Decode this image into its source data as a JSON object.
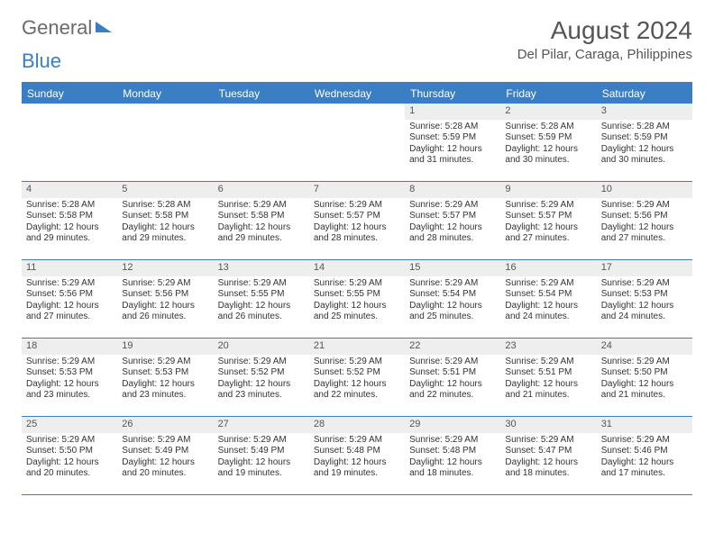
{
  "logo": {
    "text1": "General",
    "text2": "Blue"
  },
  "title": "August 2024",
  "location": "Del Pilar, Caraga, Philippines",
  "colors": {
    "brand_blue": "#3a7fc4",
    "header_text": "#555555",
    "day_number_bg": "#eeeeee",
    "body_text": "#333333",
    "background": "#ffffff"
  },
  "dow": [
    "Sunday",
    "Monday",
    "Tuesday",
    "Wednesday",
    "Thursday",
    "Friday",
    "Saturday"
  ],
  "weeks": [
    [
      {
        "n": "",
        "sr": "",
        "ss": "",
        "dl": ""
      },
      {
        "n": "",
        "sr": "",
        "ss": "",
        "dl": ""
      },
      {
        "n": "",
        "sr": "",
        "ss": "",
        "dl": ""
      },
      {
        "n": "",
        "sr": "",
        "ss": "",
        "dl": ""
      },
      {
        "n": "1",
        "sr": "Sunrise: 5:28 AM",
        "ss": "Sunset: 5:59 PM",
        "dl": "Daylight: 12 hours and 31 minutes."
      },
      {
        "n": "2",
        "sr": "Sunrise: 5:28 AM",
        "ss": "Sunset: 5:59 PM",
        "dl": "Daylight: 12 hours and 30 minutes."
      },
      {
        "n": "3",
        "sr": "Sunrise: 5:28 AM",
        "ss": "Sunset: 5:59 PM",
        "dl": "Daylight: 12 hours and 30 minutes."
      }
    ],
    [
      {
        "n": "4",
        "sr": "Sunrise: 5:28 AM",
        "ss": "Sunset: 5:58 PM",
        "dl": "Daylight: 12 hours and 29 minutes."
      },
      {
        "n": "5",
        "sr": "Sunrise: 5:28 AM",
        "ss": "Sunset: 5:58 PM",
        "dl": "Daylight: 12 hours and 29 minutes."
      },
      {
        "n": "6",
        "sr": "Sunrise: 5:29 AM",
        "ss": "Sunset: 5:58 PM",
        "dl": "Daylight: 12 hours and 29 minutes."
      },
      {
        "n": "7",
        "sr": "Sunrise: 5:29 AM",
        "ss": "Sunset: 5:57 PM",
        "dl": "Daylight: 12 hours and 28 minutes."
      },
      {
        "n": "8",
        "sr": "Sunrise: 5:29 AM",
        "ss": "Sunset: 5:57 PM",
        "dl": "Daylight: 12 hours and 28 minutes."
      },
      {
        "n": "9",
        "sr": "Sunrise: 5:29 AM",
        "ss": "Sunset: 5:57 PM",
        "dl": "Daylight: 12 hours and 27 minutes."
      },
      {
        "n": "10",
        "sr": "Sunrise: 5:29 AM",
        "ss": "Sunset: 5:56 PM",
        "dl": "Daylight: 12 hours and 27 minutes."
      }
    ],
    [
      {
        "n": "11",
        "sr": "Sunrise: 5:29 AM",
        "ss": "Sunset: 5:56 PM",
        "dl": "Daylight: 12 hours and 27 minutes."
      },
      {
        "n": "12",
        "sr": "Sunrise: 5:29 AM",
        "ss": "Sunset: 5:56 PM",
        "dl": "Daylight: 12 hours and 26 minutes."
      },
      {
        "n": "13",
        "sr": "Sunrise: 5:29 AM",
        "ss": "Sunset: 5:55 PM",
        "dl": "Daylight: 12 hours and 26 minutes."
      },
      {
        "n": "14",
        "sr": "Sunrise: 5:29 AM",
        "ss": "Sunset: 5:55 PM",
        "dl": "Daylight: 12 hours and 25 minutes."
      },
      {
        "n": "15",
        "sr": "Sunrise: 5:29 AM",
        "ss": "Sunset: 5:54 PM",
        "dl": "Daylight: 12 hours and 25 minutes."
      },
      {
        "n": "16",
        "sr": "Sunrise: 5:29 AM",
        "ss": "Sunset: 5:54 PM",
        "dl": "Daylight: 12 hours and 24 minutes."
      },
      {
        "n": "17",
        "sr": "Sunrise: 5:29 AM",
        "ss": "Sunset: 5:53 PM",
        "dl": "Daylight: 12 hours and 24 minutes."
      }
    ],
    [
      {
        "n": "18",
        "sr": "Sunrise: 5:29 AM",
        "ss": "Sunset: 5:53 PM",
        "dl": "Daylight: 12 hours and 23 minutes."
      },
      {
        "n": "19",
        "sr": "Sunrise: 5:29 AM",
        "ss": "Sunset: 5:53 PM",
        "dl": "Daylight: 12 hours and 23 minutes."
      },
      {
        "n": "20",
        "sr": "Sunrise: 5:29 AM",
        "ss": "Sunset: 5:52 PM",
        "dl": "Daylight: 12 hours and 23 minutes."
      },
      {
        "n": "21",
        "sr": "Sunrise: 5:29 AM",
        "ss": "Sunset: 5:52 PM",
        "dl": "Daylight: 12 hours and 22 minutes."
      },
      {
        "n": "22",
        "sr": "Sunrise: 5:29 AM",
        "ss": "Sunset: 5:51 PM",
        "dl": "Daylight: 12 hours and 22 minutes."
      },
      {
        "n": "23",
        "sr": "Sunrise: 5:29 AM",
        "ss": "Sunset: 5:51 PM",
        "dl": "Daylight: 12 hours and 21 minutes."
      },
      {
        "n": "24",
        "sr": "Sunrise: 5:29 AM",
        "ss": "Sunset: 5:50 PM",
        "dl": "Daylight: 12 hours and 21 minutes."
      }
    ],
    [
      {
        "n": "25",
        "sr": "Sunrise: 5:29 AM",
        "ss": "Sunset: 5:50 PM",
        "dl": "Daylight: 12 hours and 20 minutes."
      },
      {
        "n": "26",
        "sr": "Sunrise: 5:29 AM",
        "ss": "Sunset: 5:49 PM",
        "dl": "Daylight: 12 hours and 20 minutes."
      },
      {
        "n": "27",
        "sr": "Sunrise: 5:29 AM",
        "ss": "Sunset: 5:49 PM",
        "dl": "Daylight: 12 hours and 19 minutes."
      },
      {
        "n": "28",
        "sr": "Sunrise: 5:29 AM",
        "ss": "Sunset: 5:48 PM",
        "dl": "Daylight: 12 hours and 19 minutes."
      },
      {
        "n": "29",
        "sr": "Sunrise: 5:29 AM",
        "ss": "Sunset: 5:48 PM",
        "dl": "Daylight: 12 hours and 18 minutes."
      },
      {
        "n": "30",
        "sr": "Sunrise: 5:29 AM",
        "ss": "Sunset: 5:47 PM",
        "dl": "Daylight: 12 hours and 18 minutes."
      },
      {
        "n": "31",
        "sr": "Sunrise: 5:29 AM",
        "ss": "Sunset: 5:46 PM",
        "dl": "Daylight: 12 hours and 17 minutes."
      }
    ]
  ]
}
